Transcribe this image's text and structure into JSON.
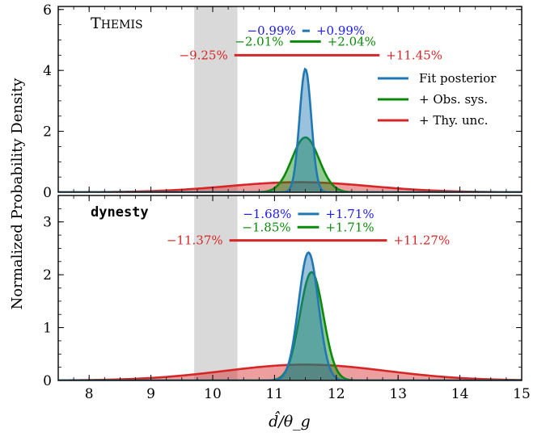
{
  "figure": {
    "ylabel": "Normalized Probability Density",
    "xlabel": "d̂/θ_g"
  },
  "colors": {
    "fit": "#1f77b4",
    "obs": "#0a8a0a",
    "thy": "#d62728",
    "band": "#d9d9d9",
    "pct_blue": "#1a1aff",
    "pct_green": "#0a8a0a",
    "pct_red": "#d62728"
  },
  "legend": [
    {
      "label": "Fit posterior",
      "color": "#1f77b4"
    },
    {
      "label": "+ Obs. sys.",
      "color": "#0a8a0a"
    },
    {
      "label": "+ Thy. unc.",
      "color": "#d62728"
    }
  ],
  "chart_data": [
    {
      "type": "area",
      "title": "Themis",
      "x_range": [
        7.5,
        15
      ],
      "ylim": [
        0,
        6.1
      ],
      "yticks": [
        0,
        2,
        4,
        6
      ],
      "xticks": [
        8,
        9,
        10,
        11,
        12,
        13,
        14,
        15
      ],
      "shaded_band": [
        9.7,
        10.4
      ],
      "legend_position": "right",
      "series": [
        {
          "name": "Fit posterior",
          "mean": 11.5,
          "sigma": 0.095,
          "peak": 4.05
        },
        {
          "name": "+ Obs. sys.",
          "mean": 11.5,
          "sigma": 0.22,
          "peak": 1.8
        },
        {
          "name": "+ Thy. unc.",
          "mean": 11.4,
          "sigma": 1.15,
          "peak": 0.33
        }
      ],
      "intervals": [
        {
          "lo": "−0.99%",
          "hi": "+0.99%",
          "x0": 11.45,
          "x1": 11.57,
          "y": 5.3,
          "color": "#1f77b4",
          "text_color": "#1a1aff"
        },
        {
          "lo": "−2.01%",
          "hi": "+2.04%",
          "x0": 11.25,
          "x1": 11.75,
          "y": 4.95,
          "color": "#0a8a0a",
          "text_color": "#0a8a0a"
        },
        {
          "lo": "−9.25%",
          "hi": "+11.45%",
          "x0": 10.35,
          "x1": 12.7,
          "y": 4.5,
          "color": "#d62728",
          "text_color": "#d62728"
        }
      ]
    },
    {
      "type": "area",
      "title": "dynesty",
      "x_range": [
        7.5,
        15
      ],
      "ylim": [
        0,
        3.5
      ],
      "yticks": [
        0,
        1,
        2,
        3
      ],
      "xticks": [
        8,
        9,
        10,
        11,
        12,
        13,
        14,
        15
      ],
      "shaded_band": [
        9.7,
        10.4
      ],
      "series": [
        {
          "name": "Fit posterior",
          "mean": 11.55,
          "sigma": 0.16,
          "peak": 2.42
        },
        {
          "name": "+ Obs. sys.",
          "mean": 11.6,
          "sigma": 0.19,
          "peak": 2.05
        },
        {
          "name": "+ Thy. unc.",
          "mean": 11.5,
          "sigma": 1.3,
          "peak": 0.3
        }
      ],
      "intervals": [
        {
          "lo": "−1.68%",
          "hi": "+1.71%",
          "x0": 11.38,
          "x1": 11.72,
          "y": 3.15,
          "color": "#1f77b4",
          "text_color": "#1a1aff"
        },
        {
          "lo": "−1.85%",
          "hi": "+1.71%",
          "x0": 11.37,
          "x1": 11.72,
          "y": 2.9,
          "color": "#0a8a0a",
          "text_color": "#0a8a0a"
        },
        {
          "lo": "−11.37%",
          "hi": "+11.27%",
          "x0": 10.27,
          "x1": 12.82,
          "y": 2.65,
          "color": "#d62728",
          "text_color": "#d62728"
        }
      ]
    }
  ]
}
